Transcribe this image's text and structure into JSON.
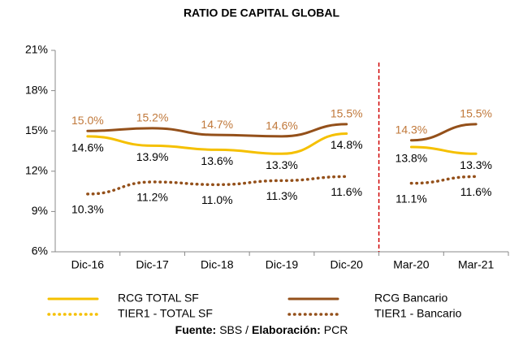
{
  "chart_data": {
    "type": "line",
    "title": "RATIO DE CAPITAL GLOBAL",
    "categories": [
      "Dic-16",
      "Dic-17",
      "Dic-18",
      "Dic-19",
      "Dic-20",
      "Mar-20",
      "Mar-21"
    ],
    "divider_after_index": 4,
    "divider_color": "#d00000",
    "ylim": [
      6,
      21
    ],
    "yticks": [
      {
        "value": 6,
        "label": "6%"
      },
      {
        "value": 9,
        "label": "9%"
      },
      {
        "value": 12,
        "label": "12%"
      },
      {
        "value": 15,
        "label": "15%"
      },
      {
        "value": 18,
        "label": "18%"
      },
      {
        "value": 21,
        "label": "21%"
      }
    ],
    "series": [
      {
        "name": "RCG TOTAL SF",
        "color": "#f5c000",
        "style": "solid",
        "label_color": "#000000",
        "label_position": "below",
        "values": [
          14.6,
          13.9,
          13.6,
          13.3,
          14.8,
          13.8,
          13.3
        ],
        "value_labels": [
          "14.6%",
          "13.9%",
          "13.6%",
          "13.3%",
          "14.8%",
          "13.8%",
          "13.3%"
        ]
      },
      {
        "name": "RCG Bancario",
        "color": "#94501a",
        "style": "solid",
        "label_color": "#c0783a",
        "label_position": "above",
        "values": [
          15.0,
          15.2,
          14.7,
          14.6,
          15.5,
          14.3,
          15.5
        ],
        "value_labels": [
          "15.0%",
          "15.2%",
          "14.7%",
          "14.6%",
          "15.5%",
          "14.3%",
          "15.5%"
        ]
      },
      {
        "name": "TIER1 - TOTAL SF",
        "color": "#f5c000",
        "style": "dotted",
        "values": [
          null,
          null,
          null,
          null,
          null,
          null,
          null
        ]
      },
      {
        "name": "TIER1 - Bancario",
        "color": "#94501a",
        "style": "dotted",
        "label_color": "#000000",
        "label_position": "below",
        "values": [
          10.3,
          11.2,
          11.0,
          11.3,
          11.6,
          11.1,
          11.6
        ],
        "value_labels": [
          "10.3%",
          "11.2%",
          "11.0%",
          "11.3%",
          "11.6%",
          "11.1%",
          "11.6%"
        ]
      }
    ],
    "source": {
      "label1": "Fuente:",
      "text1": "SBS /",
      "label2": "Elaboración:",
      "text2": "PCR"
    }
  }
}
